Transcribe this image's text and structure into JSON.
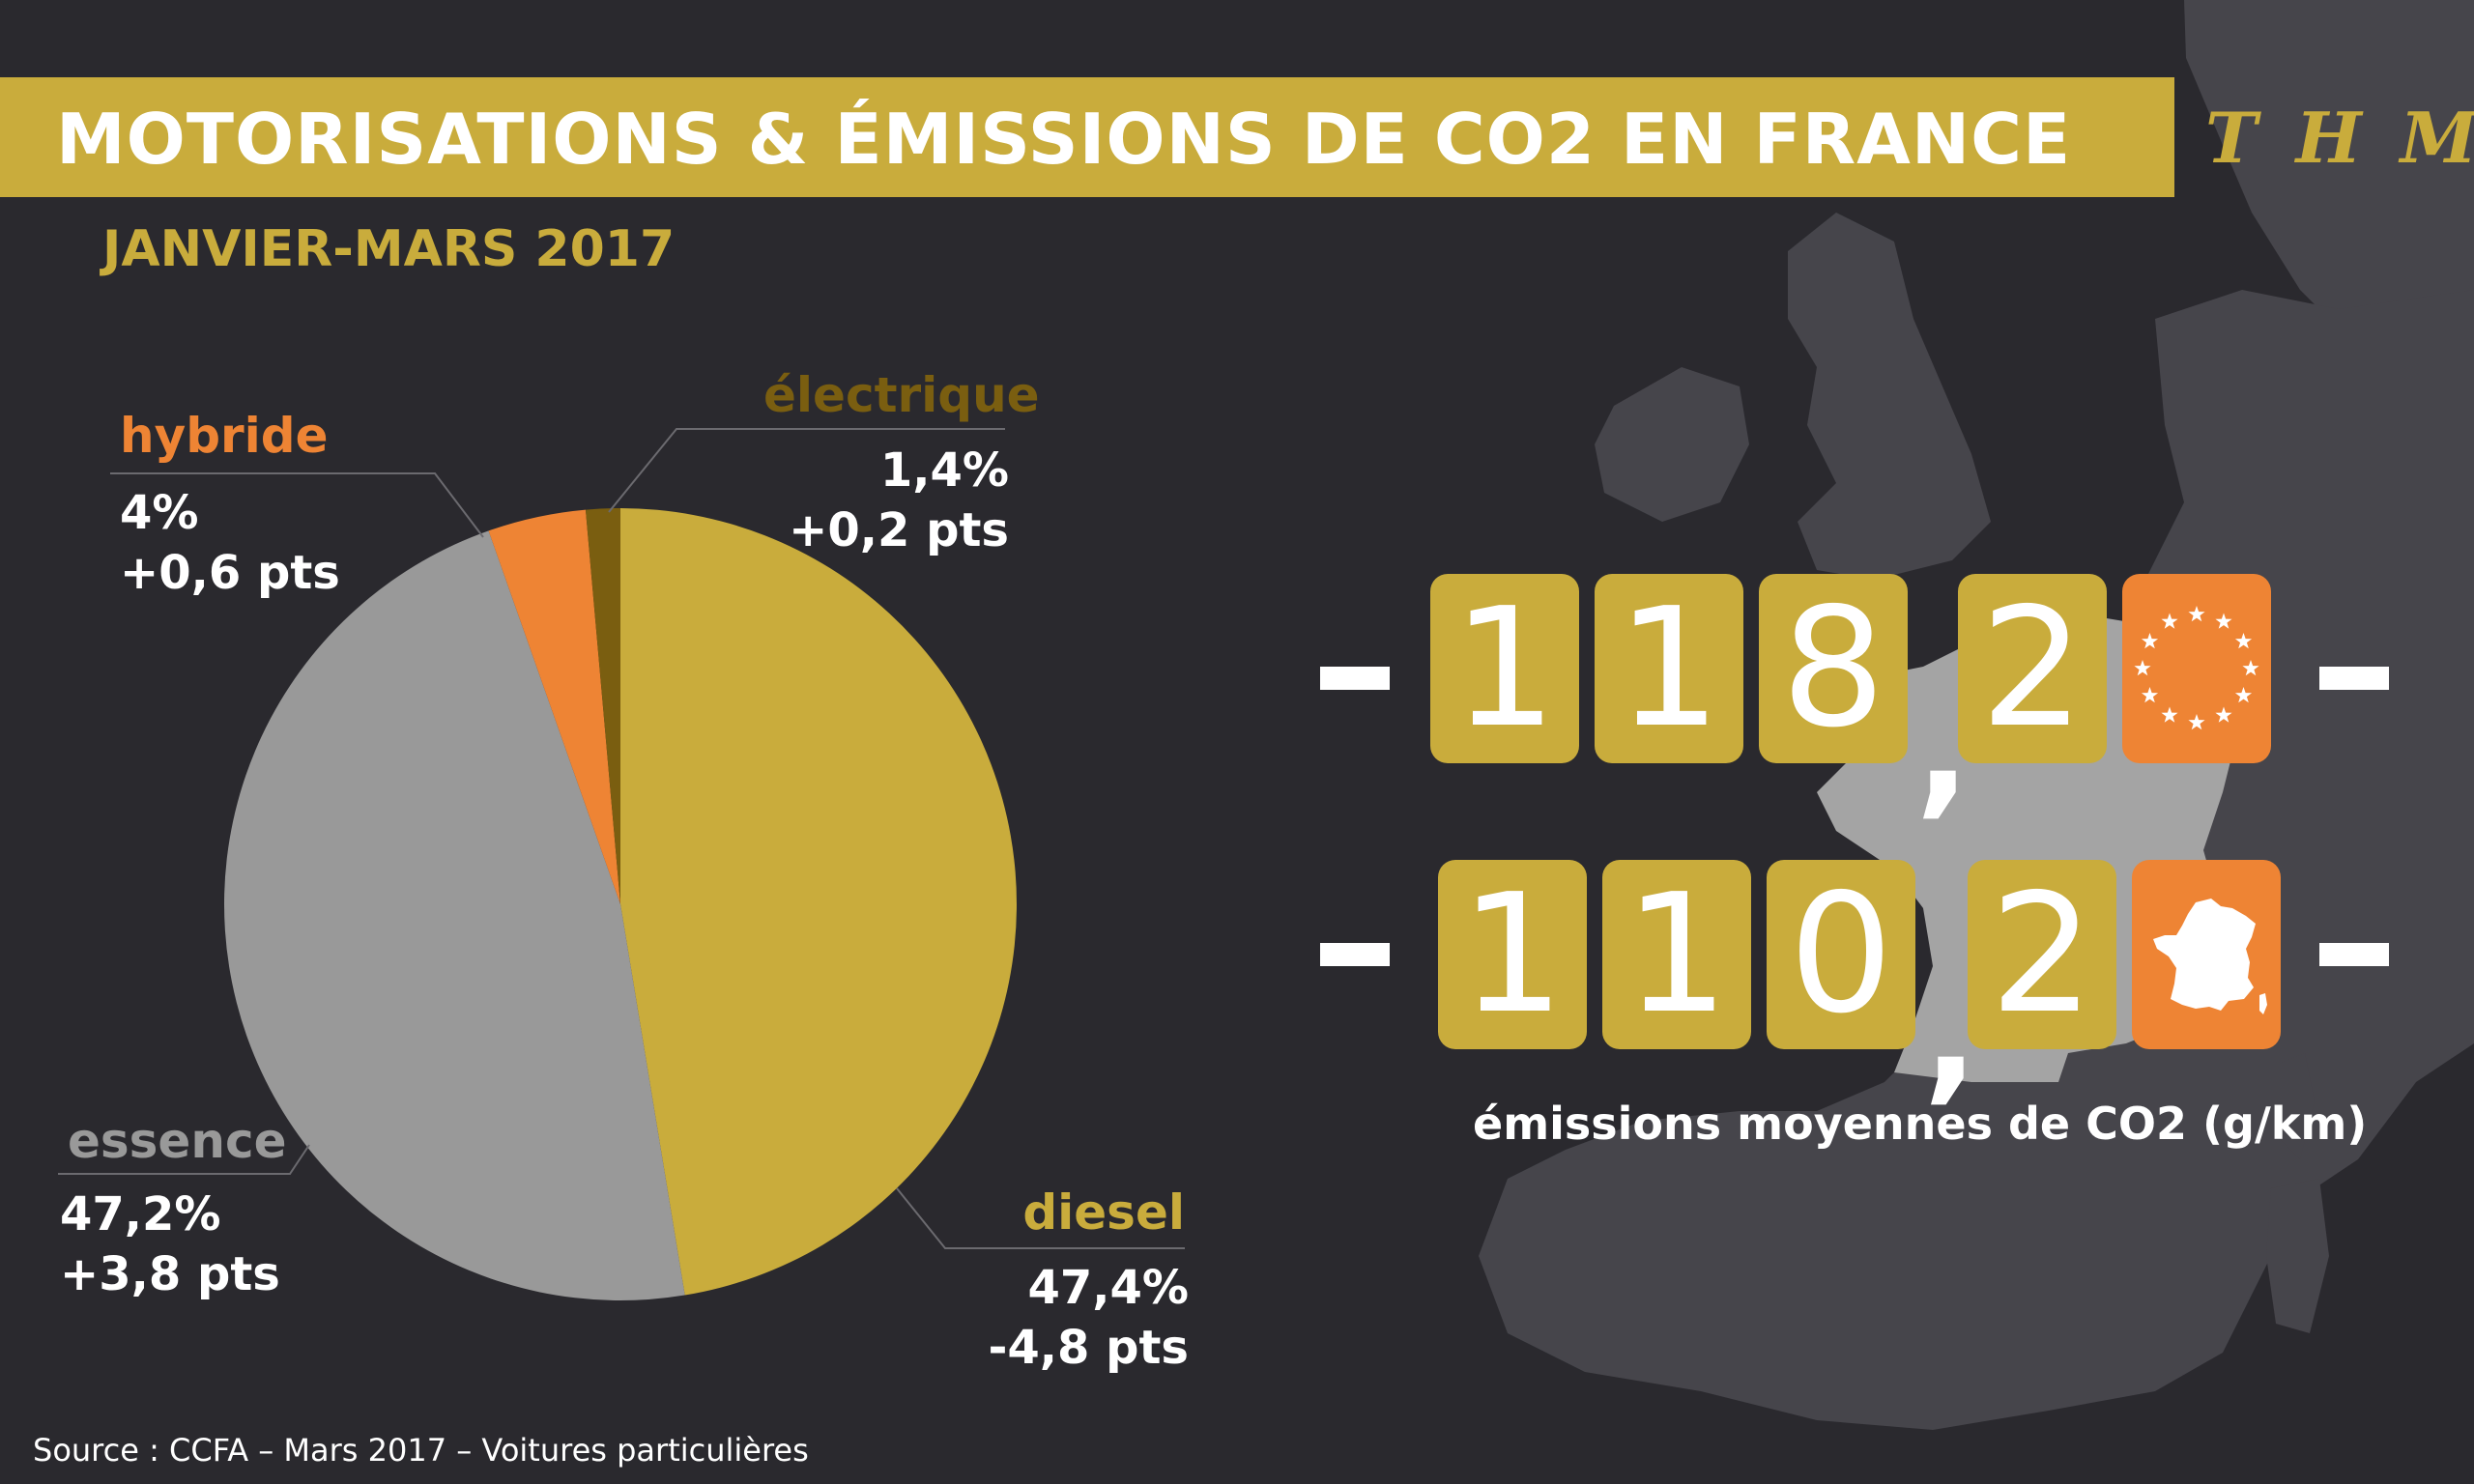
{
  "header": {
    "title": "MOTORISATIONS & ÉMISSIONS DE CO2 EN FRANCE",
    "logo": "THM",
    "subtitle": "JANVIER-MARS 2017"
  },
  "colors": {
    "background": "#2a292e",
    "map": "#46454b",
    "france": "#a4a4a4",
    "gold": "#c9ac3c",
    "orange": "#ee8434",
    "grey": "#999999",
    "brown": "#7a5e10"
  },
  "chart_data": {
    "type": "pie",
    "slices": [
      {
        "name": "diesel",
        "value": 47.4,
        "pct_label": "47,4%",
        "change": "-4,8 pts",
        "color": "#c9ac3c"
      },
      {
        "name": "essence",
        "value": 47.2,
        "pct_label": "47,2%",
        "change": "+3,8 pts",
        "color": "#999999"
      },
      {
        "name": "hybride",
        "value": 4.0,
        "pct_label": "4%",
        "change": "+0,6 pts",
        "color": "#ee8434"
      },
      {
        "name": "électrique",
        "value": 1.4,
        "pct_label": "1,4%",
        "change": "+0,2 pts",
        "color": "#7a5e10"
      }
    ]
  },
  "emissions": {
    "eu": {
      "digits": [
        "1",
        "1",
        "8",
        "2"
      ],
      "value": 118.2,
      "icon": "eu-flag-icon"
    },
    "fr": {
      "digits": [
        "1",
        "1",
        "0",
        "2"
      ],
      "value": 110.2,
      "icon": "france-map-icon"
    },
    "comma": ",",
    "caption": "émissions moyennes de CO2 (g/km)"
  },
  "source": "Source : CCFA – Mars 2017 – Voitures particulières"
}
